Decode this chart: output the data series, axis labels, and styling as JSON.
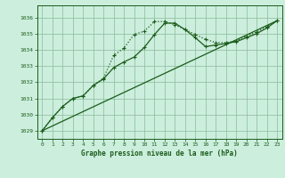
{
  "title": "Graphe pression niveau de la mer (hPa)",
  "background_color": "#cceedd",
  "grid_color": "#88bb99",
  "line_color": "#1a5c1a",
  "xlim": [
    -0.5,
    23.5
  ],
  "ylim": [
    1028.5,
    1036.75
  ],
  "yticks": [
    1029,
    1030,
    1031,
    1032,
    1033,
    1034,
    1035,
    1036
  ],
  "xticks": [
    0,
    1,
    2,
    3,
    4,
    5,
    6,
    7,
    8,
    9,
    10,
    11,
    12,
    13,
    14,
    15,
    16,
    17,
    18,
    19,
    20,
    21,
    22,
    23
  ],
  "series1_x": [
    0,
    1,
    2,
    3,
    4,
    5,
    6,
    7,
    8,
    9,
    10,
    11,
    12,
    13,
    14,
    15,
    16,
    17,
    18,
    19,
    20,
    21,
    22,
    23
  ],
  "series1_y": [
    1029.0,
    1029.8,
    1030.5,
    1031.0,
    1031.15,
    1031.8,
    1032.25,
    1033.65,
    1034.1,
    1034.95,
    1035.15,
    1035.75,
    1035.75,
    1035.55,
    1035.25,
    1034.95,
    1034.65,
    1034.45,
    1034.45,
    1034.55,
    1034.85,
    1035.1,
    1035.45,
    1035.8
  ],
  "series2_x": [
    0,
    1,
    2,
    3,
    4,
    5,
    6,
    7,
    8,
    9,
    10,
    11,
    12,
    13,
    14,
    15,
    16,
    17,
    18,
    19,
    20,
    21,
    22,
    23
  ],
  "series2_y": [
    1029.0,
    1029.8,
    1030.5,
    1031.0,
    1031.15,
    1031.8,
    1032.2,
    1032.9,
    1033.25,
    1033.55,
    1034.15,
    1034.95,
    1035.65,
    1035.65,
    1035.25,
    1034.75,
    1034.2,
    1034.3,
    1034.4,
    1034.5,
    1034.75,
    1035.0,
    1035.35,
    1035.8
  ],
  "series3_x": [
    0,
    23
  ],
  "series3_y": [
    1029.0,
    1035.8
  ]
}
